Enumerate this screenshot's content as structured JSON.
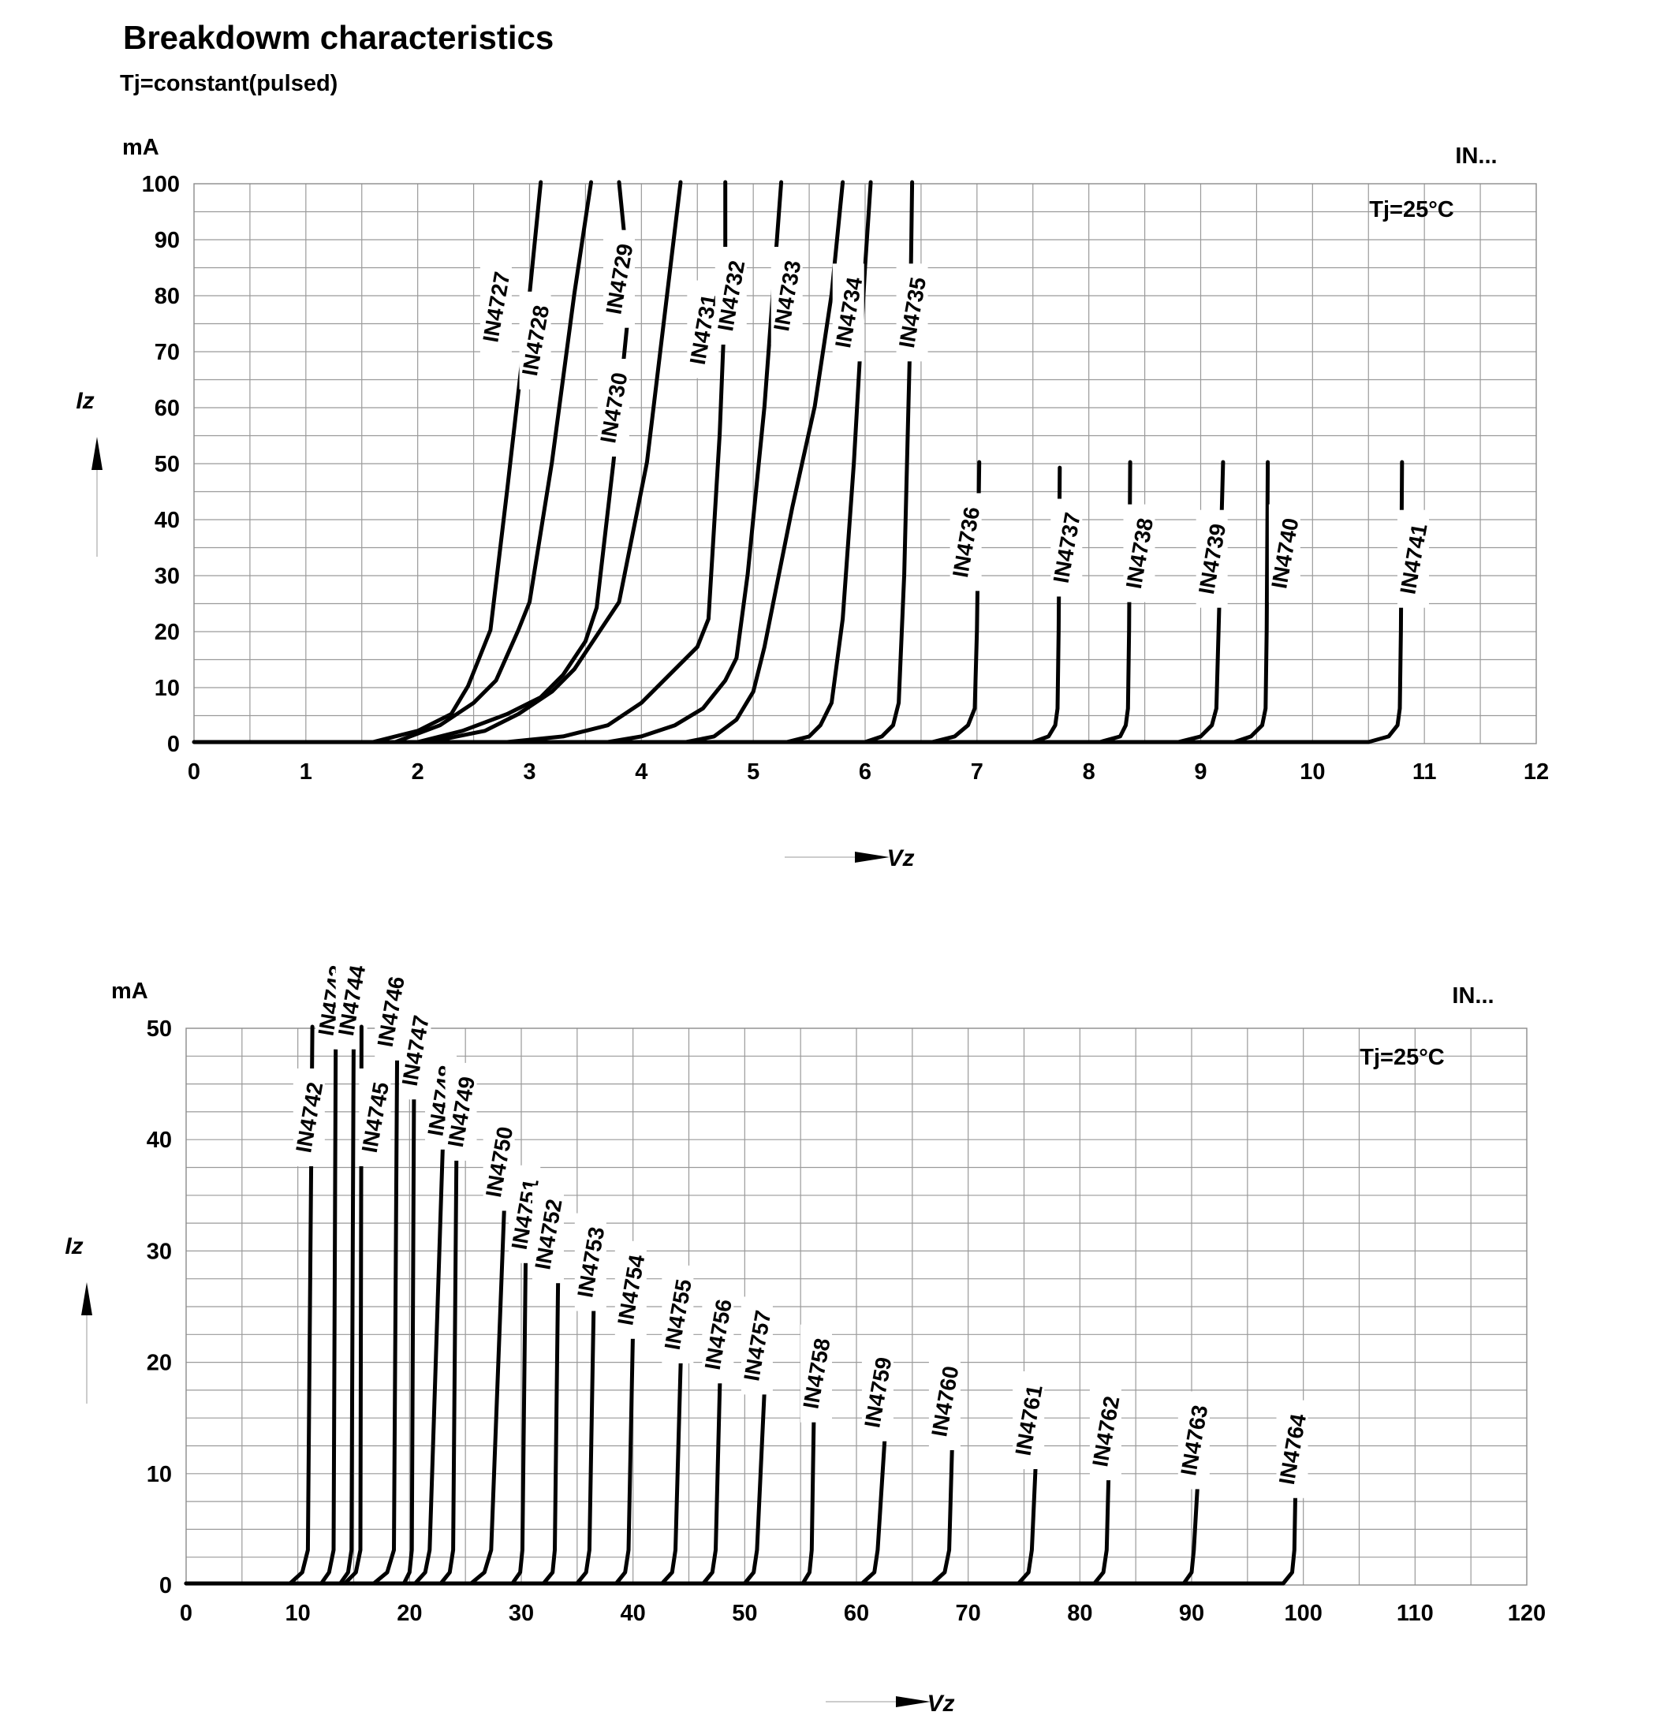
{
  "title": "Breakdowm characteristics",
  "subtitle": "Tj=constant(pulsed)",
  "chart_data": [
    {
      "type": "line",
      "unit_label": "mA",
      "corner_label": "IN...",
      "annotation": "Tj=25°C",
      "ylabel": "Iz",
      "xlabel": "Vz",
      "xlim": [
        0,
        12
      ],
      "ylim": [
        0,
        100
      ],
      "xticks": [
        "0",
        "1",
        "2",
        "3",
        "4",
        "5",
        "6",
        "7",
        "8",
        "9",
        "10",
        "11",
        "12"
      ],
      "yticks": [
        "0",
        "10",
        "20",
        "30",
        "40",
        "50",
        "60",
        "70",
        "80",
        "90",
        "100"
      ],
      "grid": true,
      "series": [
        {
          "name": "IN4727",
          "knee": 1.6,
          "points": [
            [
              1.6,
              0
            ],
            [
              2.0,
              2
            ],
            [
              2.3,
              5
            ],
            [
              2.45,
              10
            ],
            [
              2.55,
              15
            ],
            [
              2.65,
              20
            ],
            [
              2.8,
              45
            ],
            [
              3.0,
              80
            ],
            [
              3.1,
              100
            ]
          ]
        },
        {
          "name": "IN4728",
          "knee": 1.8,
          "points": [
            [
              1.8,
              0
            ],
            [
              2.2,
              3
            ],
            [
              2.5,
              7
            ],
            [
              2.7,
              11
            ],
            [
              2.9,
              20
            ],
            [
              3.0,
              25
            ],
            [
              3.2,
              50
            ],
            [
              3.4,
              80
            ],
            [
              3.55,
              100
            ]
          ]
        },
        {
          "name": "IN4729",
          "knee": 2.0,
          "points": [
            [
              2.0,
              0
            ],
            [
              2.4,
              2
            ],
            [
              2.8,
              5
            ],
            [
              3.1,
              8
            ],
            [
              3.3,
              12
            ],
            [
              3.5,
              18
            ],
            [
              3.6,
              24
            ],
            [
              3.75,
              50
            ],
            [
              3.9,
              80
            ],
            [
              3.8,
              100
            ]
          ]
        },
        {
          "name": "IN4730",
          "knee": 2.1,
          "points": [
            [
              2.1,
              0
            ],
            [
              2.6,
              2
            ],
            [
              2.9,
              5
            ],
            [
              3.2,
              9
            ],
            [
              3.4,
              13
            ],
            [
              3.6,
              19
            ],
            [
              3.8,
              25
            ],
            [
              4.05,
              50
            ],
            [
              4.2,
              75
            ],
            [
              4.35,
              100
            ]
          ]
        },
        {
          "name": "IN4731",
          "knee": 2.8,
          "points": [
            [
              2.8,
              0
            ],
            [
              3.3,
              1
            ],
            [
              3.7,
              3
            ],
            [
              4.0,
              7
            ],
            [
              4.3,
              13
            ],
            [
              4.5,
              17
            ],
            [
              4.6,
              22
            ],
            [
              4.7,
              55
            ],
            [
              4.75,
              80
            ],
            [
              4.75,
              100
            ]
          ]
        },
        {
          "name": "IN4732",
          "knee": 3.7,
          "points": [
            [
              3.7,
              0
            ],
            [
              4.0,
              1
            ],
            [
              4.3,
              3
            ],
            [
              4.55,
              6
            ],
            [
              4.75,
              11
            ],
            [
              4.85,
              15
            ],
            [
              4.95,
              30
            ],
            [
              5.1,
              60
            ],
            [
              5.25,
              100
            ]
          ]
        },
        {
          "name": "IN4733",
          "knee": 4.4,
          "points": [
            [
              4.4,
              0
            ],
            [
              4.65,
              1
            ],
            [
              4.85,
              4
            ],
            [
              5.0,
              9
            ],
            [
              5.1,
              17
            ],
            [
              5.2,
              27
            ],
            [
              5.35,
              42
            ],
            [
              5.55,
              60
            ],
            [
              5.7,
              80
            ],
            [
              5.8,
              100
            ]
          ]
        },
        {
          "name": "IN4734",
          "knee": 5.3,
          "points": [
            [
              5.3,
              0
            ],
            [
              5.5,
              1
            ],
            [
              5.6,
              3
            ],
            [
              5.7,
              7
            ],
            [
              5.8,
              22
            ],
            [
              5.9,
              50
            ],
            [
              6.0,
              85
            ],
            [
              6.05,
              100
            ]
          ]
        },
        {
          "name": "IN4735",
          "knee": 6.0,
          "points": [
            [
              6.0,
              0
            ],
            [
              6.15,
              1
            ],
            [
              6.25,
              3
            ],
            [
              6.3,
              7
            ],
            [
              6.35,
              30
            ],
            [
              6.4,
              70
            ],
            [
              6.42,
              100
            ]
          ]
        },
        {
          "name": "IN4736",
          "knee": 6.6,
          "points": [
            [
              6.6,
              0
            ],
            [
              6.8,
              1
            ],
            [
              6.92,
              3
            ],
            [
              6.98,
              6
            ],
            [
              7.0,
              20
            ],
            [
              7.02,
              50
            ]
          ]
        },
        {
          "name": "IN4737",
          "knee": 7.5,
          "points": [
            [
              7.5,
              0
            ],
            [
              7.64,
              1
            ],
            [
              7.7,
              3
            ],
            [
              7.72,
              6
            ],
            [
              7.73,
              20
            ],
            [
              7.74,
              49
            ]
          ]
        },
        {
          "name": "IN4738",
          "knee": 8.1,
          "points": [
            [
              8.1,
              0
            ],
            [
              8.28,
              1
            ],
            [
              8.33,
              3
            ],
            [
              8.35,
              6
            ],
            [
              8.36,
              20
            ],
            [
              8.37,
              50
            ]
          ]
        },
        {
          "name": "IN4739",
          "knee": 8.8,
          "points": [
            [
              8.8,
              0
            ],
            [
              9.0,
              1
            ],
            [
              9.1,
              3
            ],
            [
              9.14,
              6
            ],
            [
              9.16,
              20
            ],
            [
              9.2,
              50
            ]
          ]
        },
        {
          "name": "IN4740",
          "knee": 9.3,
          "points": [
            [
              9.3,
              0
            ],
            [
              9.45,
              1
            ],
            [
              9.55,
              3
            ],
            [
              9.58,
              6
            ],
            [
              9.59,
              20
            ],
            [
              9.6,
              50
            ]
          ]
        },
        {
          "name": "IN4741",
          "knee": 10.5,
          "points": [
            [
              10.5,
              0
            ],
            [
              10.68,
              1
            ],
            [
              10.76,
              3
            ],
            [
              10.78,
              6
            ],
            [
              10.79,
              20
            ],
            [
              10.8,
              50
            ]
          ]
        }
      ]
    },
    {
      "type": "line",
      "unit_label": "mA",
      "corner_label": "IN...",
      "annotation": "Tj=25°C",
      "ylabel": "Iz",
      "xlabel": "Vz",
      "xlim": [
        0,
        120
      ],
      "ylim": [
        0,
        50
      ],
      "xticks": [
        "0",
        "10",
        "20",
        "30",
        "40",
        "50",
        "60",
        "70",
        "80",
        "90",
        "100",
        "110",
        "120"
      ],
      "yticks": [
        "0",
        "10",
        "20",
        "30",
        "40",
        "50"
      ],
      "grid": true,
      "series": [
        {
          "name": "IN4742",
          "points": [
            [
              0,
              0
            ],
            [
              9.3,
              0
            ],
            [
              10.4,
              1
            ],
            [
              10.9,
              3
            ],
            [
              11.3,
              50
            ]
          ]
        },
        {
          "name": "IN4743",
          "points": [
            [
              12.1,
              0
            ],
            [
              12.8,
              1
            ],
            [
              13.2,
              3
            ],
            [
              13.4,
              50
            ]
          ]
        },
        {
          "name": "IN4744",
          "points": [
            [
              13.8,
              0
            ],
            [
              14.5,
              1
            ],
            [
              14.8,
              3
            ],
            [
              15.0,
              50
            ]
          ]
        },
        {
          "name": "IN4745",
          "points": [
            [
              14.2,
              0
            ],
            [
              15.2,
              1
            ],
            [
              15.6,
              3
            ],
            [
              15.7,
              50
            ]
          ]
        },
        {
          "name": "IN4746",
          "points": [
            [
              16.8,
              0
            ],
            [
              18.0,
              1
            ],
            [
              18.6,
              3
            ],
            [
              18.9,
              50
            ]
          ]
        },
        {
          "name": "IN4747",
          "points": [
            [
              19.5,
              0
            ],
            [
              20.0,
              1
            ],
            [
              20.2,
              3
            ],
            [
              20.4,
              45
            ]
          ]
        },
        {
          "name": "IN4748",
          "points": [
            [
              20.5,
              0
            ],
            [
              21.4,
              1
            ],
            [
              21.8,
              3
            ],
            [
              23.0,
              40
            ]
          ]
        },
        {
          "name": "IN4749",
          "points": [
            [
              22.8,
              0
            ],
            [
              23.6,
              1
            ],
            [
              23.9,
              3
            ],
            [
              24.2,
              38.5
            ]
          ]
        },
        {
          "name": "IN4750",
          "points": [
            [
              25.5,
              0
            ],
            [
              26.7,
              1
            ],
            [
              27.3,
              3
            ],
            [
              28.5,
              34.5
            ]
          ]
        },
        {
          "name": "IN4751",
          "points": [
            [
              29.2,
              0
            ],
            [
              29.9,
              1
            ],
            [
              30.1,
              3
            ],
            [
              30.4,
              30
            ]
          ]
        },
        {
          "name": "IN4752",
          "points": [
            [
              32.0,
              0
            ],
            [
              32.8,
              1
            ],
            [
              33.0,
              3
            ],
            [
              33.3,
              28
            ]
          ]
        },
        {
          "name": "IN4753",
          "points": [
            [
              35.0,
              0
            ],
            [
              35.8,
              1
            ],
            [
              36.1,
              3
            ],
            [
              36.5,
              26
            ]
          ]
        },
        {
          "name": "IN4754",
          "points": [
            [
              38.5,
              0
            ],
            [
              39.3,
              1
            ],
            [
              39.6,
              3
            ],
            [
              40.0,
              23
            ]
          ]
        },
        {
          "name": "IN4755",
          "points": [
            [
              42.6,
              0
            ],
            [
              43.5,
              1
            ],
            [
              43.8,
              3
            ],
            [
              44.3,
              21
            ]
          ]
        },
        {
          "name": "IN4756",
          "points": [
            [
              46.3,
              0
            ],
            [
              47.1,
              1
            ],
            [
              47.4,
              3
            ],
            [
              47.8,
              19
            ]
          ]
        },
        {
          "name": "IN4757",
          "points": [
            [
              50.0,
              0
            ],
            [
              50.8,
              1
            ],
            [
              51.1,
              3
            ],
            [
              51.8,
              18
            ]
          ]
        },
        {
          "name": "IN4758",
          "points": [
            [
              55.2,
              0
            ],
            [
              55.8,
              1
            ],
            [
              56.0,
              3
            ],
            [
              56.2,
              16
            ]
          ]
        },
        {
          "name": "IN4759",
          "points": [
            [
              60.5,
              0
            ],
            [
              61.6,
              1
            ],
            [
              61.9,
              3
            ],
            [
              62.6,
              14
            ]
          ]
        },
        {
          "name": "IN4760",
          "points": [
            [
              66.8,
              0
            ],
            [
              67.9,
              1
            ],
            [
              68.3,
              3
            ],
            [
              68.6,
              13.5
            ]
          ]
        },
        {
          "name": "IN4761",
          "points": [
            [
              74.5,
              0
            ],
            [
              75.4,
              1
            ],
            [
              75.7,
              3
            ],
            [
              76.1,
              12
            ]
          ]
        },
        {
          "name": "IN4762",
          "points": [
            [
              81.3,
              0
            ],
            [
              82.1,
              1
            ],
            [
              82.4,
              3
            ],
            [
              82.6,
              11
            ]
          ]
        },
        {
          "name": "IN4763",
          "points": [
            [
              89.3,
              0
            ],
            [
              90.0,
              1
            ],
            [
              90.2,
              3
            ],
            [
              90.6,
              10
            ]
          ]
        },
        {
          "name": "IN4764",
          "points": [
            [
              98.2,
              0
            ],
            [
              99.0,
              1
            ],
            [
              99.2,
              3
            ],
            [
              99.3,
              9
            ]
          ]
        }
      ]
    }
  ]
}
